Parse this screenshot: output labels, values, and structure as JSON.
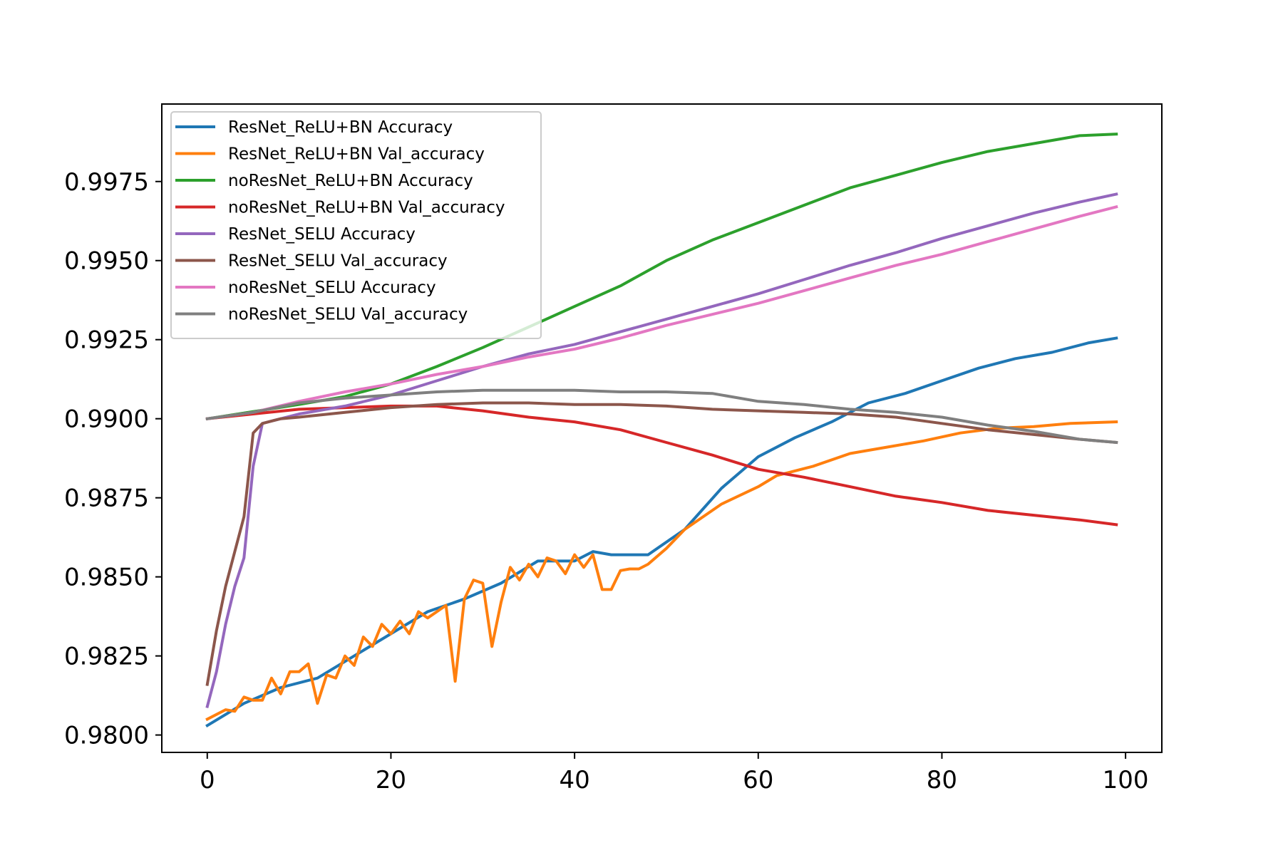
{
  "chart_data": {
    "type": "line",
    "title": "",
    "xlabel": "",
    "ylabel": "",
    "xlim": [
      -4.95,
      103.95
    ],
    "ylim": [
      0.97945,
      0.99995
    ],
    "xticks": [
      {
        "value": 0,
        "label": "0"
      },
      {
        "value": 20,
        "label": "20"
      },
      {
        "value": 40,
        "label": "40"
      },
      {
        "value": 60,
        "label": "60"
      },
      {
        "value": 80,
        "label": "80"
      },
      {
        "value": 100,
        "label": "100"
      }
    ],
    "yticks": [
      {
        "value": 0.98,
        "label": "0.9800"
      },
      {
        "value": 0.9825,
        "label": "0.9825"
      },
      {
        "value": 0.985,
        "label": "0.9850"
      },
      {
        "value": 0.9875,
        "label": "0.9875"
      },
      {
        "value": 0.99,
        "label": "0.9900"
      },
      {
        "value": 0.9925,
        "label": "0.9925"
      },
      {
        "value": 0.995,
        "label": "0.9950"
      },
      {
        "value": 0.9975,
        "label": "0.9975"
      }
    ],
    "grid": false,
    "legend_position": "top-left",
    "series": [
      {
        "name": "ResNet_ReLU+BN Accuracy",
        "color": "#1f77b4",
        "points": [
          [
            0,
            0.9803
          ],
          [
            4,
            0.981
          ],
          [
            8,
            0.9815
          ],
          [
            12,
            0.9818
          ],
          [
            16,
            0.9825
          ],
          [
            20,
            0.9832
          ],
          [
            24,
            0.9839
          ],
          [
            28,
            0.9843
          ],
          [
            32,
            0.9848
          ],
          [
            36,
            0.9855
          ],
          [
            40,
            0.9855
          ],
          [
            42,
            0.9858
          ],
          [
            44,
            0.9857
          ],
          [
            48,
            0.9857
          ],
          [
            52,
            0.9865
          ],
          [
            56,
            0.9878
          ],
          [
            60,
            0.9888
          ],
          [
            64,
            0.9894
          ],
          [
            68,
            0.9899
          ],
          [
            72,
            0.9905
          ],
          [
            76,
            0.9908
          ],
          [
            80,
            0.9912
          ],
          [
            84,
            0.9916
          ],
          [
            88,
            0.9919
          ],
          [
            92,
            0.9921
          ],
          [
            96,
            0.9924
          ],
          [
            99,
            0.99255
          ]
        ]
      },
      {
        "name": "ResNet_ReLU+BN Val_accuracy",
        "color": "#ff7f0e",
        "points": [
          [
            0,
            0.9805
          ],
          [
            2,
            0.9808
          ],
          [
            3,
            0.98075
          ],
          [
            4,
            0.9812
          ],
          [
            5,
            0.9811
          ],
          [
            6,
            0.9811
          ],
          [
            7,
            0.9818
          ],
          [
            8,
            0.9813
          ],
          [
            9,
            0.982
          ],
          [
            10,
            0.982
          ],
          [
            11,
            0.98225
          ],
          [
            12,
            0.981
          ],
          [
            13,
            0.9819
          ],
          [
            14,
            0.9818
          ],
          [
            15,
            0.9825
          ],
          [
            16,
            0.9822
          ],
          [
            17,
            0.9831
          ],
          [
            18,
            0.9828
          ],
          [
            19,
            0.9835
          ],
          [
            20,
            0.9832
          ],
          [
            21,
            0.9836
          ],
          [
            22,
            0.9832
          ],
          [
            23,
            0.9839
          ],
          [
            24,
            0.9837
          ],
          [
            25,
            0.9839
          ],
          [
            26,
            0.9841
          ],
          [
            27,
            0.9817
          ],
          [
            28,
            0.9843
          ],
          [
            29,
            0.9849
          ],
          [
            30,
            0.9848
          ],
          [
            31,
            0.9828
          ],
          [
            32,
            0.9842
          ],
          [
            33,
            0.9853
          ],
          [
            34,
            0.9849
          ],
          [
            35,
            0.9854
          ],
          [
            36,
            0.985
          ],
          [
            37,
            0.9856
          ],
          [
            38,
            0.9855
          ],
          [
            39,
            0.9851
          ],
          [
            40,
            0.9857
          ],
          [
            41,
            0.9853
          ],
          [
            42,
            0.9857
          ],
          [
            43,
            0.9846
          ],
          [
            44,
            0.9846
          ],
          [
            45,
            0.9852
          ],
          [
            46,
            0.98525
          ],
          [
            47,
            0.98525
          ],
          [
            48,
            0.9854
          ],
          [
            50,
            0.9859
          ],
          [
            52,
            0.9865
          ],
          [
            56,
            0.9873
          ],
          [
            60,
            0.98785
          ],
          [
            62,
            0.9882
          ],
          [
            66,
            0.9885
          ],
          [
            70,
            0.9889
          ],
          [
            74,
            0.9891
          ],
          [
            78,
            0.9893
          ],
          [
            82,
            0.98955
          ],
          [
            86,
            0.9897
          ],
          [
            90,
            0.98975
          ],
          [
            94,
            0.98985
          ],
          [
            99,
            0.9899
          ]
        ]
      },
      {
        "name": "noResNet_ReLU+BN Accuracy",
        "color": "#2ca02c",
        "points": [
          [
            0,
            0.99
          ],
          [
            10,
            0.99045
          ],
          [
            15,
            0.9907
          ],
          [
            20,
            0.9911
          ],
          [
            25,
            0.99165
          ],
          [
            30,
            0.99225
          ],
          [
            35,
            0.9929
          ],
          [
            40,
            0.99355
          ],
          [
            45,
            0.9942
          ],
          [
            50,
            0.995
          ],
          [
            55,
            0.99565
          ],
          [
            60,
            0.9962
          ],
          [
            65,
            0.99675
          ],
          [
            70,
            0.9973
          ],
          [
            75,
            0.9977
          ],
          [
            80,
            0.9981
          ],
          [
            85,
            0.99845
          ],
          [
            90,
            0.9987
          ],
          [
            95,
            0.99895
          ],
          [
            99,
            0.999
          ]
        ]
      },
      {
        "name": "noResNet_ReLU+BN Val_accuracy",
        "color": "#d62728",
        "points": [
          [
            0,
            0.99
          ],
          [
            5,
            0.99015
          ],
          [
            10,
            0.9903
          ],
          [
            15,
            0.99035
          ],
          [
            20,
            0.9904
          ],
          [
            25,
            0.9904
          ],
          [
            30,
            0.99025
          ],
          [
            35,
            0.99005
          ],
          [
            40,
            0.9899
          ],
          [
            45,
            0.98965
          ],
          [
            50,
            0.98925
          ],
          [
            55,
            0.98885
          ],
          [
            60,
            0.9884
          ],
          [
            65,
            0.98815
          ],
          [
            70,
            0.98785
          ],
          [
            75,
            0.98755
          ],
          [
            80,
            0.98735
          ],
          [
            85,
            0.9871
          ],
          [
            90,
            0.98695
          ],
          [
            95,
            0.9868
          ],
          [
            99,
            0.98665
          ]
        ]
      },
      {
        "name": "ResNet_SELU Accuracy",
        "color": "#9467bd",
        "points": [
          [
            0,
            0.9809
          ],
          [
            1,
            0.982
          ],
          [
            2,
            0.9835
          ],
          [
            3,
            0.9847
          ],
          [
            4,
            0.9856
          ],
          [
            5,
            0.9885
          ],
          [
            6,
            0.98985
          ],
          [
            8,
            0.99
          ],
          [
            10,
            0.99015
          ],
          [
            15,
            0.9904
          ],
          [
            20,
            0.99075
          ],
          [
            25,
            0.9912
          ],
          [
            30,
            0.99165
          ],
          [
            35,
            0.99205
          ],
          [
            40,
            0.99235
          ],
          [
            45,
            0.99275
          ],
          [
            50,
            0.99315
          ],
          [
            55,
            0.99355
          ],
          [
            60,
            0.99395
          ],
          [
            65,
            0.9944
          ],
          [
            70,
            0.99485
          ],
          [
            75,
            0.99525
          ],
          [
            80,
            0.9957
          ],
          [
            85,
            0.9961
          ],
          [
            90,
            0.9965
          ],
          [
            95,
            0.99685
          ],
          [
            99,
            0.9971
          ]
        ]
      },
      {
        "name": "ResNet_SELU Val_accuracy",
        "color": "#8c564b",
        "points": [
          [
            0,
            0.9816
          ],
          [
            1,
            0.9833
          ],
          [
            2,
            0.9847
          ],
          [
            3,
            0.9858
          ],
          [
            4,
            0.9869
          ],
          [
            5,
            0.98955
          ],
          [
            6,
            0.98985
          ],
          [
            8,
            0.99
          ],
          [
            10,
            0.99005
          ],
          [
            15,
            0.9902
          ],
          [
            20,
            0.99035
          ],
          [
            25,
            0.99045
          ],
          [
            30,
            0.9905
          ],
          [
            35,
            0.9905
          ],
          [
            40,
            0.99045
          ],
          [
            45,
            0.99045
          ],
          [
            50,
            0.9904
          ],
          [
            55,
            0.9903
          ],
          [
            60,
            0.99025
          ],
          [
            65,
            0.9902
          ],
          [
            70,
            0.99015
          ],
          [
            75,
            0.99005
          ],
          [
            80,
            0.98985
          ],
          [
            85,
            0.98965
          ],
          [
            90,
            0.9895
          ],
          [
            95,
            0.98935
          ],
          [
            99,
            0.98925
          ]
        ]
      },
      {
        "name": "noResNet_SELU Accuracy",
        "color": "#e377c2",
        "points": [
          [
            0,
            0.99
          ],
          [
            5,
            0.9902
          ],
          [
            10,
            0.99055
          ],
          [
            15,
            0.99085
          ],
          [
            20,
            0.9911
          ],
          [
            25,
            0.9914
          ],
          [
            30,
            0.99165
          ],
          [
            35,
            0.99195
          ],
          [
            40,
            0.9922
          ],
          [
            45,
            0.99255
          ],
          [
            50,
            0.99295
          ],
          [
            55,
            0.9933
          ],
          [
            60,
            0.99365
          ],
          [
            65,
            0.99405
          ],
          [
            70,
            0.99445
          ],
          [
            75,
            0.99485
          ],
          [
            80,
            0.9952
          ],
          [
            85,
            0.9956
          ],
          [
            90,
            0.996
          ],
          [
            95,
            0.9964
          ],
          [
            99,
            0.9967
          ]
        ]
      },
      {
        "name": "noResNet_SELU Val_accuracy",
        "color": "#7f7f7f",
        "points": [
          [
            0,
            0.99
          ],
          [
            5,
            0.9902
          ],
          [
            10,
            0.9905
          ],
          [
            15,
            0.99065
          ],
          [
            20,
            0.99075
          ],
          [
            25,
            0.99085
          ],
          [
            30,
            0.9909
          ],
          [
            35,
            0.9909
          ],
          [
            40,
            0.9909
          ],
          [
            45,
            0.99085
          ],
          [
            50,
            0.99085
          ],
          [
            55,
            0.9908
          ],
          [
            60,
            0.99055
          ],
          [
            65,
            0.99045
          ],
          [
            70,
            0.9903
          ],
          [
            75,
            0.9902
          ],
          [
            80,
            0.99005
          ],
          [
            85,
            0.9898
          ],
          [
            90,
            0.9896
          ],
          [
            95,
            0.98935
          ],
          [
            99,
            0.98925
          ]
        ]
      }
    ]
  }
}
